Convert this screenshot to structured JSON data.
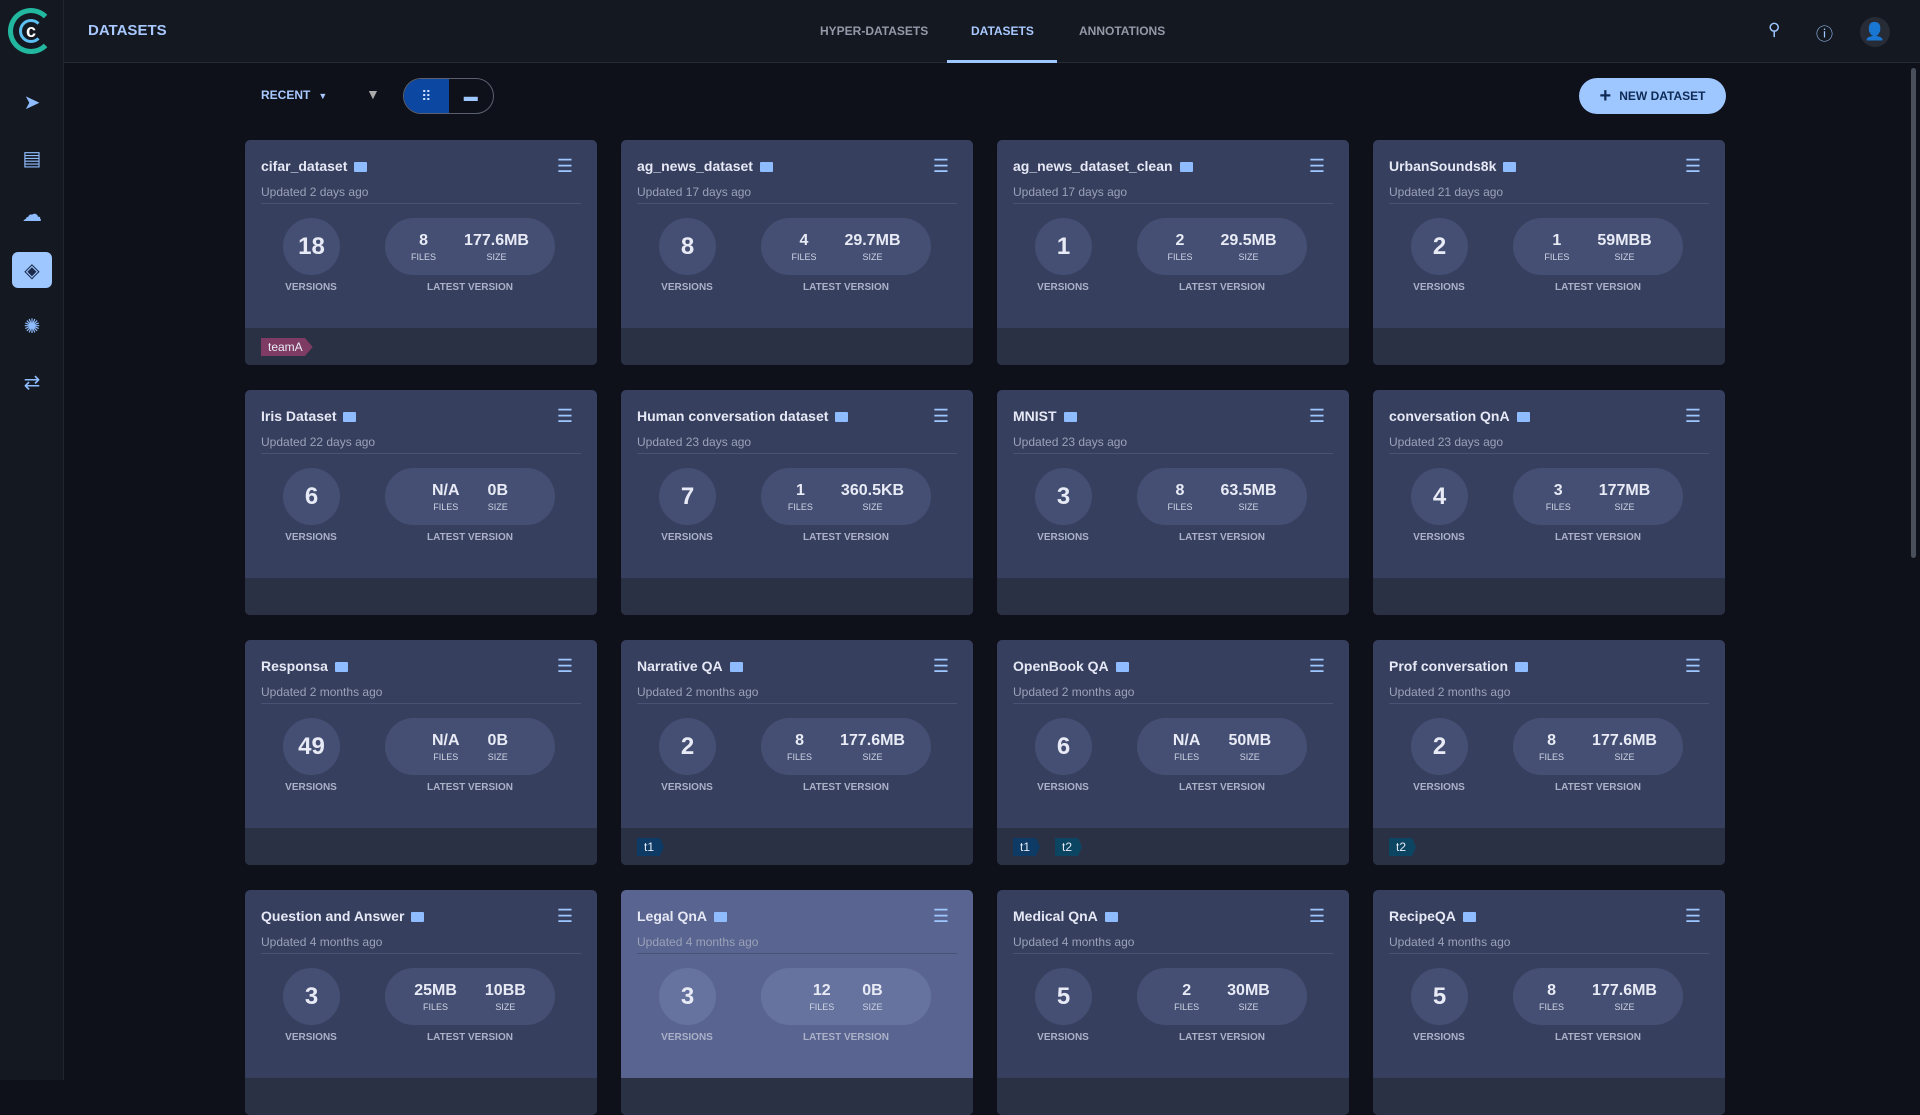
{
  "header": {
    "title": "DATASETS",
    "tabs": [
      {
        "label": "HYPER-DATASETS"
      },
      {
        "label": "DATASETS",
        "active": true
      },
      {
        "label": "ANNOTATIONS"
      }
    ]
  },
  "toolbar": {
    "sort": "RECENT",
    "new_button": "NEW DATASET",
    "view": "grid"
  },
  "colors": {
    "accent": "#9ec6ff",
    "card": "#373f5e",
    "tag_teamA": "#7e3b63",
    "tag_t1": "#0d3b66",
    "tag_t2": "#0b4562"
  },
  "labels": {
    "versions": "VERSIONS",
    "latest": "LATEST VERSION",
    "files": "FILES",
    "size": "SIZE"
  },
  "datasets": [
    {
      "name": "cifar_dataset",
      "updated": "Updated 2 days ago",
      "versions": "18",
      "files": "8",
      "size": "177.6MB",
      "tags": [
        "teamA"
      ]
    },
    {
      "name": "ag_news_dataset",
      "updated": "Updated 17 days ago",
      "versions": "8",
      "files": "4",
      "size": "29.7MB",
      "tags": []
    },
    {
      "name": "ag_news_dataset_clean",
      "updated": "Updated 17 days ago",
      "versions": "1",
      "files": "2",
      "size": "29.5MB",
      "tags": []
    },
    {
      "name": "UrbanSounds8k",
      "updated": "Updated 21 days ago",
      "versions": "2",
      "files": "1",
      "size": "59MBB",
      "tags": []
    },
    {
      "name": "Iris Dataset",
      "updated": "Updated 22 days ago",
      "versions": "6",
      "files": "N/A",
      "size": "0B",
      "tags": []
    },
    {
      "name": "Human conversation dataset",
      "updated": "Updated 23 days ago",
      "versions": "7",
      "files": "1",
      "size": "360.5KB",
      "tags": []
    },
    {
      "name": "MNIST",
      "updated": "Updated 23 days ago",
      "versions": "3",
      "files": "8",
      "size": "63.5MB",
      "tags": []
    },
    {
      "name": "conversation QnA",
      "updated": "Updated 23 days ago",
      "versions": "4",
      "files": "3",
      "size": "177MB",
      "tags": []
    },
    {
      "name": "Responsa",
      "updated": "Updated 2 months ago",
      "versions": "49",
      "files": "N/A",
      "size": "0B",
      "tags": []
    },
    {
      "name": "Narrative QA",
      "updated": "Updated 2 months ago",
      "versions": "2",
      "files": "8",
      "size": "177.6MB",
      "tags": [
        "t1"
      ]
    },
    {
      "name": "OpenBook QA",
      "updated": "Updated 2 months ago",
      "versions": "6",
      "files": "N/A",
      "size": "50MB",
      "tags": [
        "t1",
        "t2"
      ]
    },
    {
      "name": "Prof conversation",
      "updated": "Updated 2 months ago",
      "versions": "2",
      "files": "8",
      "size": "177.6MB",
      "tags": [
        "t2"
      ]
    },
    {
      "name": "Question and Answer",
      "updated": "Updated 4 months ago",
      "versions": "3",
      "files": "25MB",
      "size": "10BB",
      "tags": []
    },
    {
      "name": "Legal QnA",
      "updated": "Updated 4 months ago",
      "versions": "3",
      "files": "12",
      "size": "0B",
      "tags": [],
      "highlighted": true
    },
    {
      "name": "Medical QnA",
      "updated": "Updated 4 months ago",
      "versions": "5",
      "files": "2",
      "size": "30MB",
      "tags": []
    },
    {
      "name": "RecipeQA",
      "updated": "Updated 4 months ago",
      "versions": "5",
      "files": "8",
      "size": "177.6MB",
      "tags": []
    }
  ]
}
